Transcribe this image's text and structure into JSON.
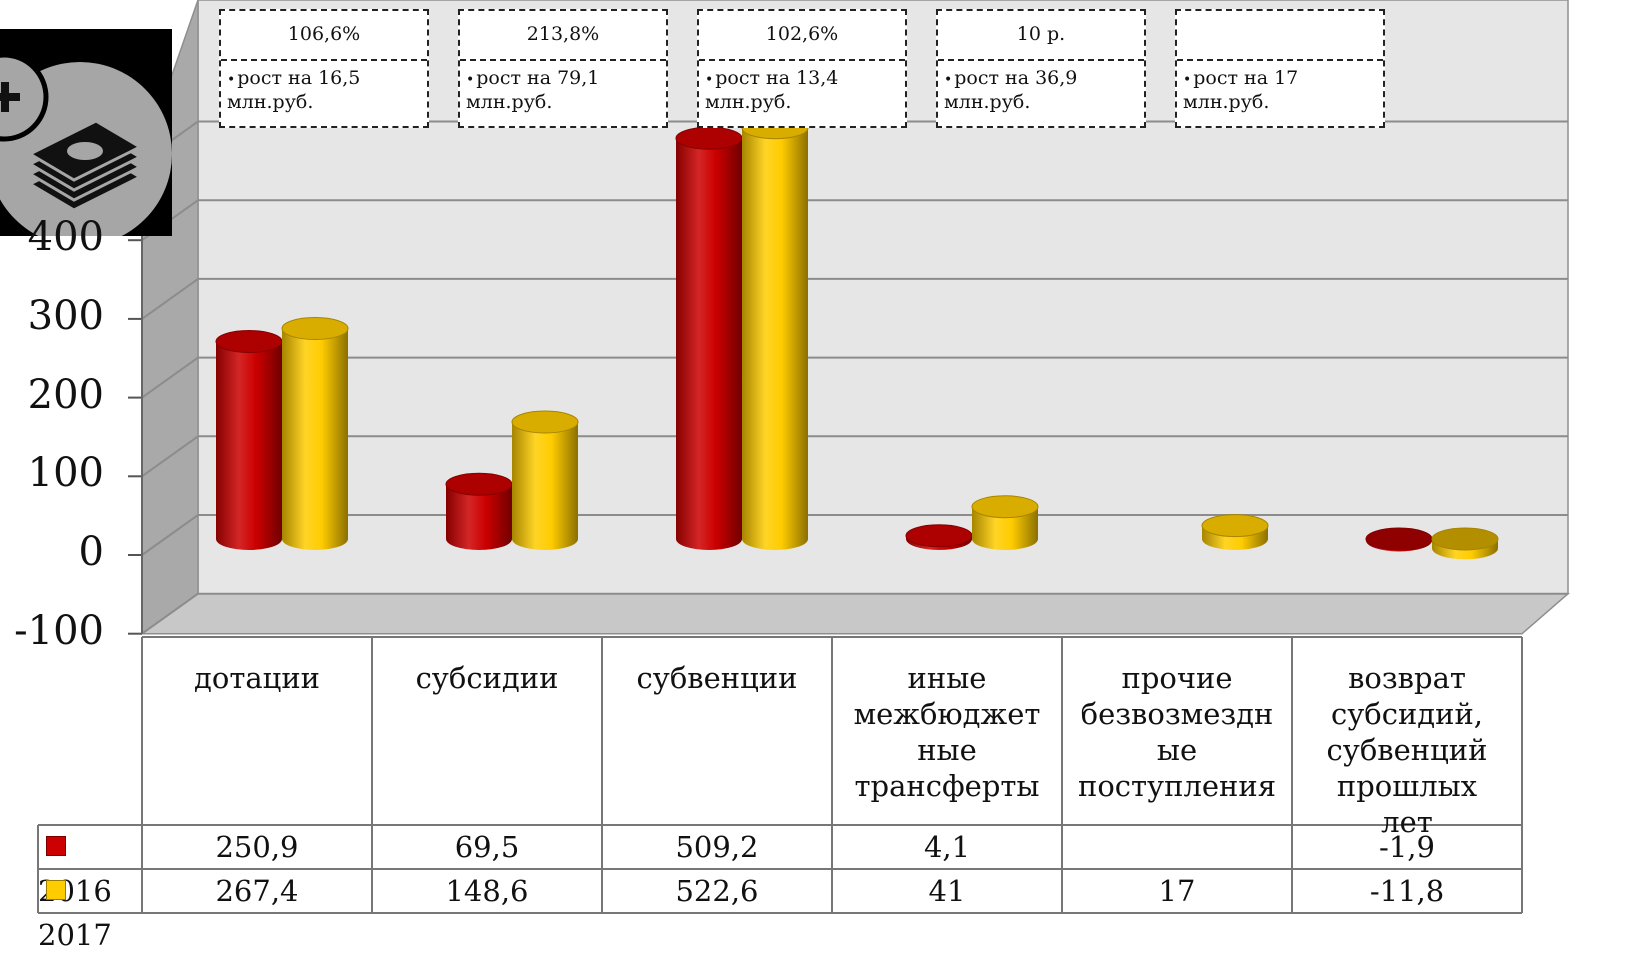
{
  "chart_data": {
    "type": "bar",
    "style": "3d-cylinder",
    "categories": [
      "дотации",
      "субсидии",
      "субвенции",
      "иные межбюджетные трансферты",
      "прочие безвозмездные поступления",
      "возврат субсидий, субвенций прошлых лет"
    ],
    "category_lines": [
      [
        "дотации"
      ],
      [
        "субсидии"
      ],
      [
        "субвенции"
      ],
      [
        "иные",
        "межбюджет",
        "ные",
        "трансферты"
      ],
      [
        "прочие",
        "безвозмездн",
        "ые",
        "поступления"
      ],
      [
        "возврат",
        "субсидий,",
        "субвенций",
        "прошлых",
        "лет"
      ]
    ],
    "series": [
      {
        "name": "2016",
        "color": "#cc0000",
        "values": [
          250.9,
          69.5,
          509.2,
          4.1,
          null,
          -1.9
        ],
        "labels": [
          "250,9",
          "69,5",
          "509,2",
          "4,1",
          "",
          "-1,9"
        ]
      },
      {
        "name": "2017",
        "color": "#ffcc00",
        "values": [
          267.4,
          148.6,
          522.6,
          41,
          17,
          -11.8
        ],
        "labels": [
          "267,4",
          "148,6",
          "522,6",
          "41",
          "17",
          "-11,8"
        ]
      }
    ],
    "y_ticks": [
      "-100",
      "0",
      "100",
      "200",
      "300",
      "400"
    ],
    "ylim": [
      -100,
      500
    ],
    "grid": true,
    "legend": "data-table"
  },
  "annotations": [
    {
      "header": "106,6%",
      "body": "рост на 16,5 млн.руб."
    },
    {
      "header": "213,8%",
      "body": "рост на 79,1 млн.руб."
    },
    {
      "header": "102,6%",
      "body": "рост на 13,4 млн.руб."
    },
    {
      "header": "10 р.",
      "body": "рост на 36,9 млн.руб."
    },
    {
      "header": "",
      "body": "рост на 17 млн.руб."
    }
  ],
  "icons": {
    "logo": "money-stack-plus-icon"
  },
  "colors": {
    "wall": "#e6e6e6",
    "floor": "#c8c8c8",
    "side_wall": "#a9a9a9",
    "red": "#cc0000",
    "yellow": "#ffcc00"
  }
}
